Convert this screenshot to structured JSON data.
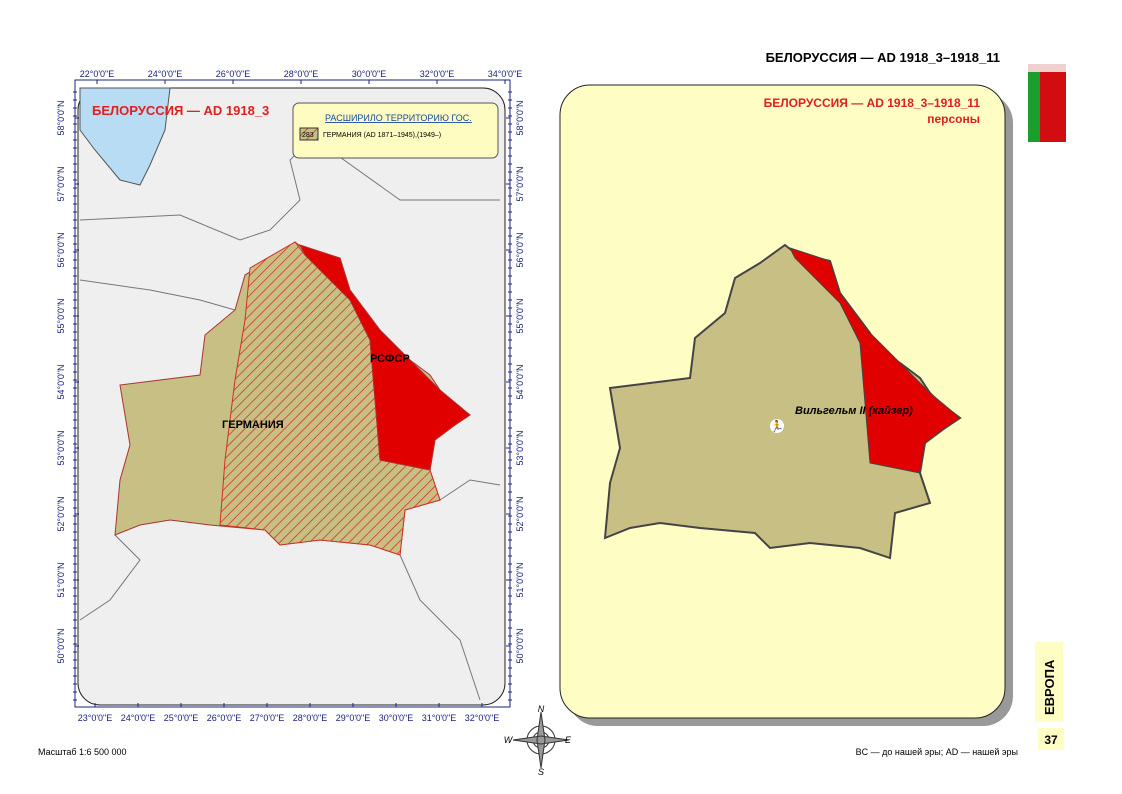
{
  "header": {
    "title": "БЕЛОРУССИЯ — AD 1918_3–1918_11"
  },
  "left_map": {
    "title": "БЕЛОРУССИЯ — AD 1918_3",
    "legend": {
      "heading": "РАСШИРИЛО ТЕРРИТОРИЮ ГОС.",
      "code": "283",
      "item": "ГЕРМАНИЯ  (AD 1871–1945),(1949–)"
    },
    "labels": [
      "РСФСР",
      "ГЕРМАНИЯ"
    ],
    "top_ticks": [
      "22°0'0\"E",
      "24°0'0\"E",
      "26°0'0\"E",
      "28°0'0\"E",
      "30°0'0\"E",
      "32°0'0\"E",
      "34°0'0\"E"
    ],
    "bottom_ticks": [
      "23°0'0\"E",
      "24°0'0\"E",
      "25°0'0\"E",
      "26°0'0\"E",
      "27°0'0\"E",
      "28°0'0\"E",
      "29°0'0\"E",
      "30°0'0\"E",
      "31°0'0\"E",
      "32°0'0\"E"
    ],
    "left_ticks": [
      "58°0'0\"N",
      "57°0'0\"N",
      "56°0'0\"N",
      "55°0'0\"N",
      "54°0'0\"N",
      "53°0'0\"N",
      "52°0'0\"N",
      "51°0'0\"N",
      "50°0'0\"N"
    ],
    "right_ticks": [
      "58°0'0\"N",
      "57°0'0\"N",
      "56°0'0\"N",
      "55°0'0\"N",
      "54°0'0\"N",
      "53°0'0\"N",
      "52°0'0\"N",
      "51°0'0\"N",
      "50°0'0\"N"
    ]
  },
  "right_map": {
    "title": "БЕЛОРУССИЯ —  AD 1918_3–1918_11",
    "subtitle": "персоны",
    "person": "Вильгельм II (кайзер)"
  },
  "compass": [
    "N",
    "W",
    "E",
    "S"
  ],
  "footer": {
    "scale": "Масштаб 1:6 500 000",
    "note": "BC — до нашей эры; AD — нашей эры",
    "section": "ЕВРОПА",
    "page": "37"
  }
}
